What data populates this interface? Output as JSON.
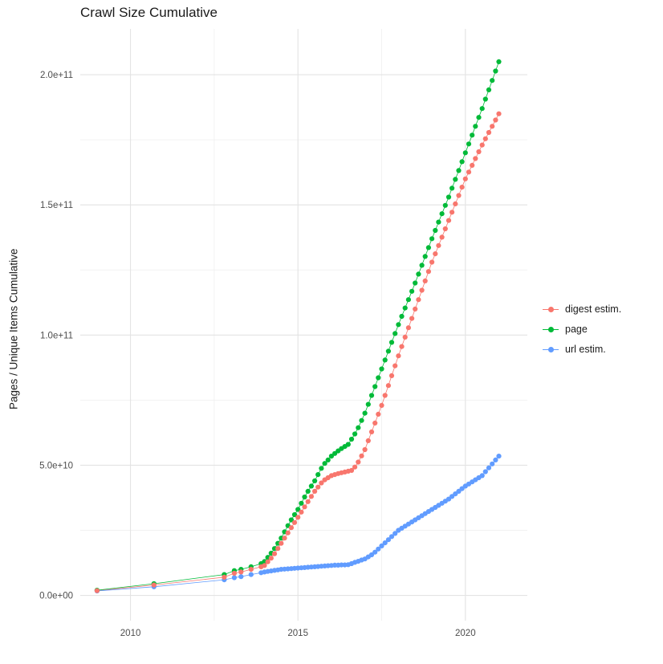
{
  "chart_data": {
    "type": "scatter",
    "title": "Crawl Size Cumulative",
    "xlabel": "",
    "ylabel": "Pages / Unique Items Cumulative",
    "legend_position": "right",
    "grid": true,
    "y_values_unit": "1e9",
    "x_range": [
      2008.5,
      2021.85
    ],
    "y_range_billions": [
      -9.7,
      217.6
    ],
    "x_ticks": [
      {
        "value": 2010,
        "label": "2010"
      },
      {
        "value": 2015,
        "label": "2015"
      },
      {
        "value": 2020,
        "label": "2020"
      }
    ],
    "x_minor": [
      2012.5,
      2017.5
    ],
    "y_ticks": [
      {
        "value": 0,
        "label": "0.0e+00"
      },
      {
        "value": 50,
        "label": "5.0e+10"
      },
      {
        "value": 100,
        "label": "1.0e+11"
      },
      {
        "value": 150,
        "label": "1.5e+11"
      },
      {
        "value": 200,
        "label": "2.0e+11"
      }
    ],
    "y_minor": [
      25,
      75,
      125,
      175
    ],
    "colors": {
      "digest_estim": "#F8766D",
      "page": "#00BA38",
      "url_estim": "#619CFF",
      "grid_major": "#E3E3E3",
      "grid_minor": "#F2F2F2",
      "tick_text": "#4D4D4D"
    },
    "series": [
      {
        "name": "digest estim.",
        "color": "#F8766D",
        "points": [
          [
            2009.0,
            1.8
          ],
          [
            2010.7,
            4.0
          ],
          [
            2012.8,
            7.0
          ],
          [
            2013.1,
            8.5
          ],
          [
            2013.3,
            9.0
          ],
          [
            2013.6,
            10.0
          ],
          [
            2013.9,
            11.0
          ],
          [
            2014.0,
            11.5
          ],
          [
            2014.1,
            12.9
          ],
          [
            2014.2,
            14.3
          ],
          [
            2014.3,
            16.0
          ],
          [
            2014.4,
            18.0
          ],
          [
            2014.5,
            20.0
          ],
          [
            2014.6,
            22.0
          ],
          [
            2014.7,
            24.0
          ],
          [
            2014.8,
            26.0
          ],
          [
            2014.9,
            28.0
          ],
          [
            2015.0,
            30.0
          ],
          [
            2015.1,
            32.0
          ],
          [
            2015.2,
            34.0
          ],
          [
            2015.3,
            36.0
          ],
          [
            2015.4,
            38.0
          ],
          [
            2015.5,
            40.0
          ],
          [
            2015.6,
            41.6
          ],
          [
            2015.7,
            43.2
          ],
          [
            2015.8,
            44.4
          ],
          [
            2015.9,
            45.2
          ],
          [
            2016.0,
            46.0
          ],
          [
            2016.1,
            46.4
          ],
          [
            2016.2,
            46.8
          ],
          [
            2016.3,
            47.1
          ],
          [
            2016.4,
            47.4
          ],
          [
            2016.5,
            47.7
          ],
          [
            2016.6,
            48.0
          ],
          [
            2016.7,
            49.3
          ],
          [
            2016.8,
            51.2
          ],
          [
            2016.9,
            53.6
          ],
          [
            2017.0,
            56.0
          ],
          [
            2017.1,
            59.4
          ],
          [
            2017.2,
            62.8
          ],
          [
            2017.3,
            66.2
          ],
          [
            2017.4,
            69.6
          ],
          [
            2017.5,
            73.0
          ],
          [
            2017.6,
            76.8
          ],
          [
            2017.7,
            80.6
          ],
          [
            2017.8,
            84.4
          ],
          [
            2017.9,
            88.2
          ],
          [
            2018.0,
            92.0
          ],
          [
            2018.1,
            95.6
          ],
          [
            2018.2,
            99.2
          ],
          [
            2018.3,
            102.8
          ],
          [
            2018.4,
            106.4
          ],
          [
            2018.5,
            110.0
          ],
          [
            2018.6,
            113.6
          ],
          [
            2018.7,
            117.2
          ],
          [
            2018.8,
            120.8
          ],
          [
            2018.9,
            124.4
          ],
          [
            2019.0,
            128.0
          ],
          [
            2019.1,
            131.2
          ],
          [
            2019.2,
            134.4
          ],
          [
            2019.3,
            137.6
          ],
          [
            2019.4,
            140.8
          ],
          [
            2019.5,
            144.0
          ],
          [
            2019.6,
            147.2
          ],
          [
            2019.7,
            150.4
          ],
          [
            2019.8,
            153.6
          ],
          [
            2019.9,
            156.8
          ],
          [
            2020.0,
            160.0
          ],
          [
            2020.1,
            162.6
          ],
          [
            2020.2,
            165.2
          ],
          [
            2020.3,
            167.8
          ],
          [
            2020.4,
            170.4
          ],
          [
            2020.5,
            173.0
          ],
          [
            2020.6,
            175.4
          ],
          [
            2020.7,
            177.8
          ],
          [
            2020.8,
            180.2
          ],
          [
            2020.9,
            182.6
          ],
          [
            2021.0,
            185.0
          ]
        ]
      },
      {
        "name": "page",
        "color": "#00BA38",
        "points": [
          [
            2009.0,
            2.0
          ],
          [
            2010.7,
            4.5
          ],
          [
            2012.8,
            8.0
          ],
          [
            2013.1,
            9.5
          ],
          [
            2013.3,
            10.0
          ],
          [
            2013.6,
            11.0
          ],
          [
            2013.9,
            12.2
          ],
          [
            2014.0,
            13.0
          ],
          [
            2014.1,
            14.6
          ],
          [
            2014.2,
            16.2
          ],
          [
            2014.3,
            18.0
          ],
          [
            2014.4,
            20.0
          ],
          [
            2014.5,
            22.0
          ],
          [
            2014.6,
            24.4
          ],
          [
            2014.7,
            26.8
          ],
          [
            2014.8,
            29.0
          ],
          [
            2014.9,
            31.0
          ],
          [
            2015.0,
            33.0
          ],
          [
            2015.1,
            35.4
          ],
          [
            2015.2,
            37.8
          ],
          [
            2015.3,
            40.0
          ],
          [
            2015.4,
            42.0
          ],
          [
            2015.5,
            44.0
          ],
          [
            2015.6,
            46.4
          ],
          [
            2015.7,
            48.8
          ],
          [
            2015.8,
            50.7
          ],
          [
            2015.9,
            52.0
          ],
          [
            2016.0,
            53.5
          ],
          [
            2016.1,
            54.5
          ],
          [
            2016.2,
            55.5
          ],
          [
            2016.3,
            56.4
          ],
          [
            2016.4,
            57.2
          ],
          [
            2016.5,
            58.0
          ],
          [
            2016.6,
            60.0
          ],
          [
            2016.7,
            62.0
          ],
          [
            2016.8,
            64.4
          ],
          [
            2016.9,
            67.2
          ],
          [
            2017.0,
            70.0
          ],
          [
            2017.1,
            73.4
          ],
          [
            2017.2,
            76.8
          ],
          [
            2017.3,
            80.2
          ],
          [
            2017.4,
            83.6
          ],
          [
            2017.5,
            87.0
          ],
          [
            2017.6,
            90.4
          ],
          [
            2017.7,
            93.8
          ],
          [
            2017.8,
            97.2
          ],
          [
            2017.9,
            100.6
          ],
          [
            2018.0,
            104.0
          ],
          [
            2018.1,
            107.2
          ],
          [
            2018.2,
            110.4
          ],
          [
            2018.3,
            113.6
          ],
          [
            2018.4,
            116.8
          ],
          [
            2018.5,
            120.0
          ],
          [
            2018.6,
            123.4
          ],
          [
            2018.7,
            126.8
          ],
          [
            2018.8,
            130.2
          ],
          [
            2018.9,
            133.6
          ],
          [
            2019.0,
            137.0
          ],
          [
            2019.1,
            140.2
          ],
          [
            2019.2,
            143.4
          ],
          [
            2019.3,
            146.6
          ],
          [
            2019.4,
            149.8
          ],
          [
            2019.5,
            153.0
          ],
          [
            2019.6,
            156.4
          ],
          [
            2019.7,
            159.8
          ],
          [
            2019.8,
            163.2
          ],
          [
            2019.9,
            166.6
          ],
          [
            2020.0,
            170.0
          ],
          [
            2020.1,
            173.4
          ],
          [
            2020.2,
            176.8
          ],
          [
            2020.3,
            180.2
          ],
          [
            2020.4,
            183.6
          ],
          [
            2020.5,
            187.0
          ],
          [
            2020.6,
            190.6
          ],
          [
            2020.7,
            194.2
          ],
          [
            2020.8,
            197.8
          ],
          [
            2020.9,
            201.4
          ],
          [
            2021.0,
            205.0
          ]
        ]
      },
      {
        "name": "url estim.",
        "color": "#619CFF",
        "points": [
          [
            2009.0,
            1.7
          ],
          [
            2010.7,
            3.3
          ],
          [
            2012.8,
            6.0
          ],
          [
            2013.1,
            6.8
          ],
          [
            2013.3,
            7.2
          ],
          [
            2013.6,
            8.0
          ],
          [
            2013.9,
            8.7
          ],
          [
            2014.0,
            9.0
          ],
          [
            2014.1,
            9.2
          ],
          [
            2014.2,
            9.4
          ],
          [
            2014.3,
            9.6
          ],
          [
            2014.4,
            9.8
          ],
          [
            2014.5,
            10.0
          ],
          [
            2014.6,
            10.1
          ],
          [
            2014.7,
            10.2
          ],
          [
            2014.8,
            10.3
          ],
          [
            2014.9,
            10.4
          ],
          [
            2015.0,
            10.5
          ],
          [
            2015.1,
            10.6
          ],
          [
            2015.2,
            10.7
          ],
          [
            2015.3,
            10.8
          ],
          [
            2015.4,
            10.9
          ],
          [
            2015.5,
            11.0
          ],
          [
            2015.6,
            11.1
          ],
          [
            2015.7,
            11.2
          ],
          [
            2015.8,
            11.3
          ],
          [
            2015.9,
            11.4
          ],
          [
            2016.0,
            11.5
          ],
          [
            2016.1,
            11.6
          ],
          [
            2016.2,
            11.6
          ],
          [
            2016.3,
            11.7
          ],
          [
            2016.4,
            11.7
          ],
          [
            2016.5,
            11.8
          ],
          [
            2016.6,
            12.2
          ],
          [
            2016.7,
            12.7
          ],
          [
            2016.8,
            13.1
          ],
          [
            2016.9,
            13.6
          ],
          [
            2017.0,
            14.0
          ],
          [
            2017.1,
            14.8
          ],
          [
            2017.2,
            15.6
          ],
          [
            2017.3,
            16.6
          ],
          [
            2017.4,
            17.8
          ],
          [
            2017.5,
            19.0
          ],
          [
            2017.6,
            20.2
          ],
          [
            2017.7,
            21.4
          ],
          [
            2017.8,
            22.6
          ],
          [
            2017.9,
            23.8
          ],
          [
            2018.0,
            25.0
          ],
          [
            2018.1,
            25.8
          ],
          [
            2018.2,
            26.6
          ],
          [
            2018.3,
            27.4
          ],
          [
            2018.4,
            28.2
          ],
          [
            2018.5,
            29.0
          ],
          [
            2018.6,
            29.8
          ],
          [
            2018.7,
            30.6
          ],
          [
            2018.8,
            31.4
          ],
          [
            2018.9,
            32.2
          ],
          [
            2019.0,
            33.0
          ],
          [
            2019.1,
            33.8
          ],
          [
            2019.2,
            34.6
          ],
          [
            2019.3,
            35.4
          ],
          [
            2019.4,
            36.2
          ],
          [
            2019.5,
            37.0
          ],
          [
            2019.6,
            38.0
          ],
          [
            2019.7,
            39.0
          ],
          [
            2019.8,
            40.0
          ],
          [
            2019.9,
            41.0
          ],
          [
            2020.0,
            42.0
          ],
          [
            2020.1,
            42.8
          ],
          [
            2020.2,
            43.6
          ],
          [
            2020.3,
            44.4
          ],
          [
            2020.4,
            45.2
          ],
          [
            2020.5,
            46.0
          ],
          [
            2020.6,
            47.5
          ],
          [
            2020.7,
            49.0
          ],
          [
            2020.8,
            50.5
          ],
          [
            2020.9,
            52.0
          ],
          [
            2021.0,
            53.5
          ]
        ]
      }
    ]
  }
}
